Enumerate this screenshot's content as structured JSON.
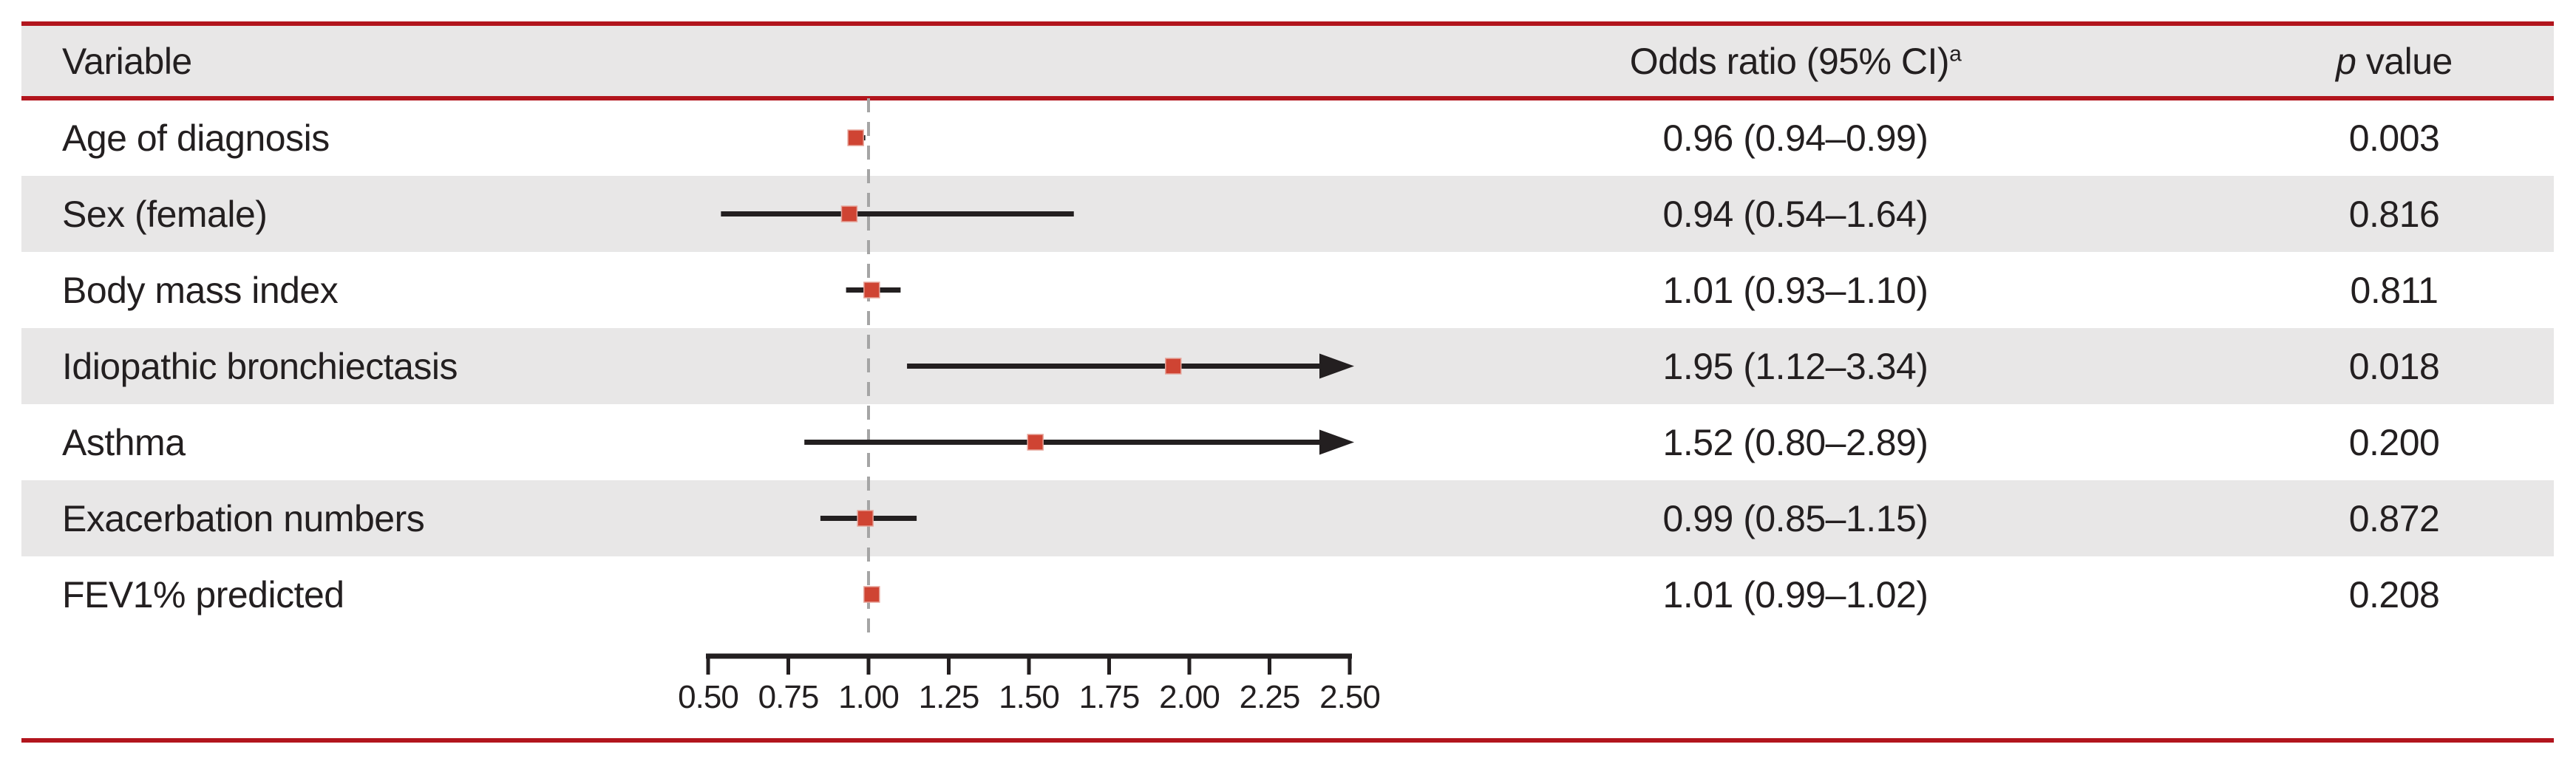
{
  "table": {
    "header": {
      "variable": "Variable",
      "odds_ratio_main": "Odds ratio (95% CI)",
      "odds_ratio_sup": "a",
      "p_italic": "p",
      "p_rest": " value"
    },
    "rows": [
      {
        "variable": "Age of diagnosis",
        "or_ci": "0.96 (0.94–0.99)",
        "p": "0.003"
      },
      {
        "variable": "Sex (female)",
        "or_ci": "0.94 (0.54–1.64)",
        "p": "0.816"
      },
      {
        "variable": "Body mass index",
        "or_ci": "1.01 (0.93–1.10)",
        "p": "0.811"
      },
      {
        "variable": "Idiopathic bronchiectasis",
        "or_ci": "1.95 (1.12–3.34)",
        "p": "0.018"
      },
      {
        "variable": "Asthma",
        "or_ci": "1.52 (0.80–2.89)",
        "p": "0.200"
      },
      {
        "variable": "Exacerbation numbers",
        "or_ci": "0.99 (0.85–1.15)",
        "p": "0.872"
      },
      {
        "variable": "FEV1% predicted",
        "or_ci": "1.01 (0.99–1.02)",
        "p": "0.208"
      }
    ]
  },
  "chart_data": {
    "type": "forest",
    "title": "",
    "xlabel": "",
    "x_axis": {
      "min": 0.5,
      "max": 2.5,
      "tick_labels": [
        "0.50",
        "0.75",
        "1.00",
        "1.25",
        "1.50",
        "1.75",
        "2.00",
        "2.25",
        "2.50"
      ],
      "reference_line": 1.0
    },
    "points": [
      {
        "label": "Age of diagnosis",
        "or": 0.96,
        "lo": 0.94,
        "hi": 0.99
      },
      {
        "label": "Sex (female)",
        "or": 0.94,
        "lo": 0.54,
        "hi": 1.64
      },
      {
        "label": "Body mass index",
        "or": 1.01,
        "lo": 0.93,
        "hi": 1.1
      },
      {
        "label": "Idiopathic bronchiectasis",
        "or": 1.95,
        "lo": 1.12,
        "hi": 3.34
      },
      {
        "label": "Asthma",
        "or": 1.52,
        "lo": 0.8,
        "hi": 2.89
      },
      {
        "label": "Exacerbation numbers",
        "or": 0.99,
        "lo": 0.85,
        "hi": 1.15
      },
      {
        "label": "FEV1% predicted",
        "or": 1.01,
        "lo": 0.99,
        "hi": 1.02
      }
    ]
  },
  "colors": {
    "rule_red": "#b2151d",
    "band_gray": "#e8e7e7",
    "ink": "#231f20",
    "marker_red": "#cf4433",
    "marker_edge": "#e5a399",
    "ref_line_gray": "#a5a5a5"
  }
}
